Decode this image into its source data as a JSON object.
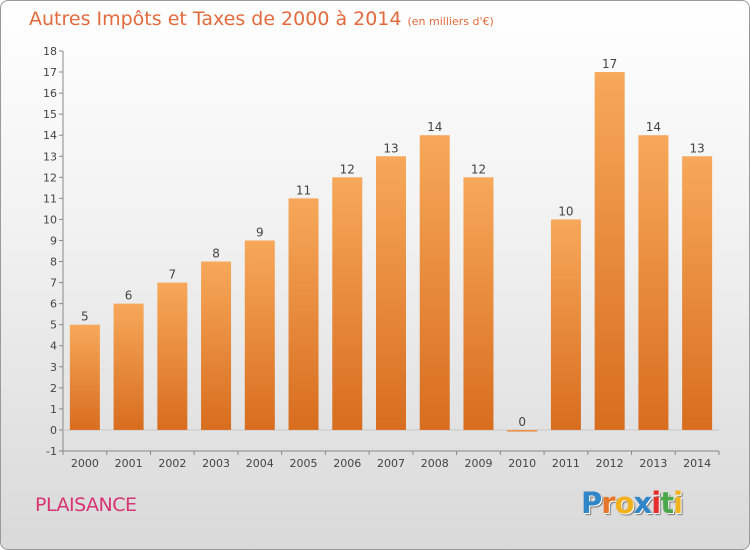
{
  "header": {
    "title": "Autres Impôts et Taxes de 2000 à 2014",
    "unit": "(en milliers d'€)"
  },
  "footer": {
    "place": "PLAISANCE",
    "logo_text": "Proxiti",
    "logo_colors": [
      "#2f86c9",
      "#e8762a",
      "#f1b21c",
      "#2f86c9",
      "#e52d2d",
      "#4aa84a",
      "#f1b21c"
    ]
  },
  "chart_data": {
    "type": "bar",
    "title": "Autres Impôts et Taxes de 2000 à 2014 (en milliers d'€)",
    "categories": [
      "2000",
      "2001",
      "2002",
      "2003",
      "2004",
      "2005",
      "2006",
      "2007",
      "2008",
      "2009",
      "2010",
      "2011",
      "2012",
      "2013",
      "2014"
    ],
    "values": [
      5,
      6,
      7,
      8,
      9,
      11,
      12,
      13,
      14,
      12,
      0,
      10,
      17,
      14,
      13
    ],
    "ylim": [
      -1,
      18
    ],
    "yticks": [
      -1,
      0,
      1,
      2,
      3,
      4,
      5,
      6,
      7,
      8,
      9,
      10,
      11,
      12,
      13,
      14,
      15,
      16,
      17,
      18
    ],
    "grid": false,
    "bar_color_top": "#f7a85a",
    "bar_color_bottom": "#d86d1e",
    "axis_color": "#888888",
    "label_color": "#444444"
  }
}
